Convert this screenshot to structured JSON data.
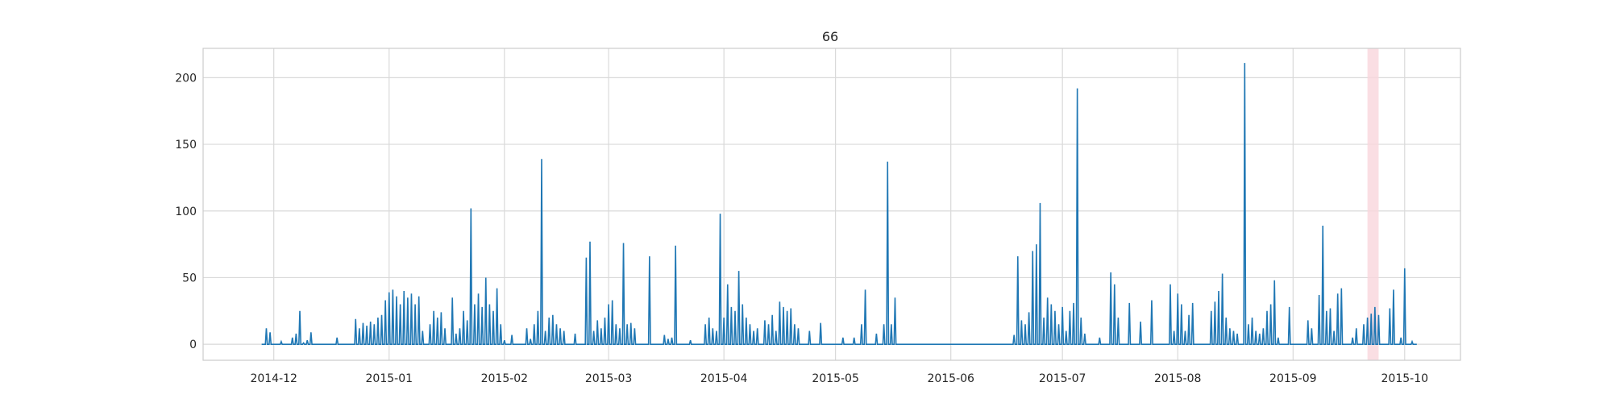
{
  "chart_data": {
    "type": "line",
    "title": "66",
    "xlabel": "",
    "ylabel": "",
    "grid": true,
    "x_axis": {
      "type": "date",
      "range": [
        "2014-11-12",
        "2015-10-16"
      ],
      "ticks": [
        "2014-12-01",
        "2015-01-01",
        "2015-02-01",
        "2015-03-01",
        "2015-04-01",
        "2015-05-01",
        "2015-06-01",
        "2015-07-01",
        "2015-08-01",
        "2015-09-01",
        "2015-10-01"
      ],
      "tick_labels": [
        "2014-12",
        "2015-01",
        "2015-02",
        "2015-03",
        "2015-04",
        "2015-05",
        "2015-06",
        "2015-07",
        "2015-08",
        "2015-09",
        "2015-10"
      ]
    },
    "y_axis": {
      "range": [
        -12,
        222
      ],
      "ticks": [
        0,
        50,
        100,
        150,
        200
      ],
      "tick_labels": [
        "0",
        "50",
        "100",
        "150",
        "200"
      ]
    },
    "highlight_span": {
      "from": "2015-09-21",
      "to": "2015-09-24",
      "color": "#f9d6dc"
    },
    "series": [
      {
        "color": "#1f77b4",
        "points": [
          [
            "2014-11-28",
            0
          ],
          [
            "2014-11-29",
            12
          ],
          [
            "2014-11-30",
            9
          ],
          [
            "2014-12-01",
            0
          ],
          [
            "2014-12-03",
            2
          ],
          [
            "2014-12-06",
            5
          ],
          [
            "2014-12-07",
            8
          ],
          [
            "2014-12-08",
            25
          ],
          [
            "2014-12-09",
            1
          ],
          [
            "2014-12-10",
            3
          ],
          [
            "2014-12-11",
            9
          ],
          [
            "2014-12-12",
            0
          ],
          [
            "2014-12-18",
            5
          ],
          [
            "2014-12-19",
            0
          ],
          [
            "2014-12-23",
            19
          ],
          [
            "2014-12-24",
            12
          ],
          [
            "2014-12-25",
            16
          ],
          [
            "2014-12-26",
            14
          ],
          [
            "2014-12-27",
            17
          ],
          [
            "2014-12-28",
            15
          ],
          [
            "2014-12-29",
            20
          ],
          [
            "2014-12-30",
            22
          ],
          [
            "2014-12-31",
            33
          ],
          [
            "2015-01-01",
            39
          ],
          [
            "2015-01-02",
            41
          ],
          [
            "2015-01-03",
            36
          ],
          [
            "2015-01-04",
            30
          ],
          [
            "2015-01-05",
            40
          ],
          [
            "2015-01-06",
            35
          ],
          [
            "2015-01-07",
            38
          ],
          [
            "2015-01-08",
            30
          ],
          [
            "2015-01-09",
            36
          ],
          [
            "2015-01-10",
            10
          ],
          [
            "2015-01-11",
            0
          ],
          [
            "2015-01-12",
            15
          ],
          [
            "2015-01-13",
            25
          ],
          [
            "2015-01-14",
            20
          ],
          [
            "2015-01-15",
            24
          ],
          [
            "2015-01-16",
            12
          ],
          [
            "2015-01-17",
            0
          ],
          [
            "2015-01-18",
            35
          ],
          [
            "2015-01-19",
            8
          ],
          [
            "2015-01-20",
            12
          ],
          [
            "2015-01-21",
            25
          ],
          [
            "2015-01-22",
            18
          ],
          [
            "2015-01-23",
            102
          ],
          [
            "2015-01-24",
            30
          ],
          [
            "2015-01-25",
            38
          ],
          [
            "2015-01-26",
            28
          ],
          [
            "2015-01-27",
            50
          ],
          [
            "2015-01-28",
            30
          ],
          [
            "2015-01-29",
            25
          ],
          [
            "2015-01-30",
            42
          ],
          [
            "2015-01-31",
            15
          ],
          [
            "2015-02-01",
            3
          ],
          [
            "2015-02-02",
            0
          ],
          [
            "2015-02-03",
            7
          ],
          [
            "2015-02-04",
            0
          ],
          [
            "2015-02-07",
            12
          ],
          [
            "2015-02-08",
            4
          ],
          [
            "2015-02-09",
            15
          ],
          [
            "2015-02-10",
            25
          ],
          [
            "2015-02-11",
            139
          ],
          [
            "2015-02-12",
            10
          ],
          [
            "2015-02-13",
            20
          ],
          [
            "2015-02-14",
            22
          ],
          [
            "2015-02-15",
            15
          ],
          [
            "2015-02-16",
            12
          ],
          [
            "2015-02-17",
            10
          ],
          [
            "2015-02-18",
            0
          ],
          [
            "2015-02-20",
            8
          ],
          [
            "2015-02-21",
            0
          ],
          [
            "2015-02-23",
            65
          ],
          [
            "2015-02-24",
            77
          ],
          [
            "2015-02-25",
            10
          ],
          [
            "2015-02-26",
            18
          ],
          [
            "2015-02-27",
            12
          ],
          [
            "2015-02-28",
            20
          ],
          [
            "2015-03-01",
            30
          ],
          [
            "2015-03-02",
            33
          ],
          [
            "2015-03-03",
            15
          ],
          [
            "2015-03-04",
            12
          ],
          [
            "2015-03-05",
            76
          ],
          [
            "2015-03-06",
            15
          ],
          [
            "2015-03-07",
            16
          ],
          [
            "2015-03-08",
            12
          ],
          [
            "2015-03-09",
            0
          ],
          [
            "2015-03-12",
            66
          ],
          [
            "2015-03-13",
            0
          ],
          [
            "2015-03-16",
            7
          ],
          [
            "2015-03-17",
            4
          ],
          [
            "2015-03-18",
            5
          ],
          [
            "2015-03-19",
            74
          ],
          [
            "2015-03-20",
            0
          ],
          [
            "2015-03-23",
            3
          ],
          [
            "2015-03-24",
            0
          ],
          [
            "2015-03-27",
            15
          ],
          [
            "2015-03-28",
            20
          ],
          [
            "2015-03-29",
            12
          ],
          [
            "2015-03-30",
            10
          ],
          [
            "2015-03-31",
            98
          ],
          [
            "2015-04-01",
            20
          ],
          [
            "2015-04-02",
            45
          ],
          [
            "2015-04-03",
            28
          ],
          [
            "2015-04-04",
            25
          ],
          [
            "2015-04-05",
            55
          ],
          [
            "2015-04-06",
            30
          ],
          [
            "2015-04-07",
            20
          ],
          [
            "2015-04-08",
            15
          ],
          [
            "2015-04-09",
            10
          ],
          [
            "2015-04-10",
            12
          ],
          [
            "2015-04-11",
            0
          ],
          [
            "2015-04-12",
            18
          ],
          [
            "2015-04-13",
            15
          ],
          [
            "2015-04-14",
            22
          ],
          [
            "2015-04-15",
            10
          ],
          [
            "2015-04-16",
            32
          ],
          [
            "2015-04-17",
            28
          ],
          [
            "2015-04-18",
            25
          ],
          [
            "2015-04-19",
            27
          ],
          [
            "2015-04-20",
            15
          ],
          [
            "2015-04-21",
            12
          ],
          [
            "2015-04-22",
            0
          ],
          [
            "2015-04-24",
            10
          ],
          [
            "2015-04-25",
            0
          ],
          [
            "2015-04-27",
            16
          ],
          [
            "2015-04-28",
            0
          ],
          [
            "2015-05-03",
            5
          ],
          [
            "2015-05-04",
            0
          ],
          [
            "2015-05-06",
            5
          ],
          [
            "2015-05-07",
            0
          ],
          [
            "2015-05-08",
            15
          ],
          [
            "2015-05-09",
            41
          ],
          [
            "2015-05-10",
            0
          ],
          [
            "2015-05-12",
            8
          ],
          [
            "2015-05-13",
            0
          ],
          [
            "2015-05-14",
            15
          ],
          [
            "2015-05-15",
            137
          ],
          [
            "2015-05-16",
            15
          ],
          [
            "2015-05-17",
            35
          ],
          [
            "2015-05-18",
            0
          ],
          [
            "2015-06-17",
            0
          ],
          [
            "2015-06-18",
            7
          ],
          [
            "2015-06-19",
            66
          ],
          [
            "2015-06-20",
            18
          ],
          [
            "2015-06-21",
            15
          ],
          [
            "2015-06-22",
            24
          ],
          [
            "2015-06-23",
            70
          ],
          [
            "2015-06-24",
            75
          ],
          [
            "2015-06-25",
            106
          ],
          [
            "2015-06-26",
            20
          ],
          [
            "2015-06-27",
            35
          ],
          [
            "2015-06-28",
            30
          ],
          [
            "2015-06-29",
            25
          ],
          [
            "2015-06-30",
            15
          ],
          [
            "2015-07-01",
            28
          ],
          [
            "2015-07-02",
            10
          ],
          [
            "2015-07-03",
            25
          ],
          [
            "2015-07-04",
            31
          ],
          [
            "2015-07-05",
            192
          ],
          [
            "2015-07-06",
            20
          ],
          [
            "2015-07-07",
            8
          ],
          [
            "2015-07-08",
            0
          ],
          [
            "2015-07-11",
            5
          ],
          [
            "2015-07-12",
            0
          ],
          [
            "2015-07-14",
            54
          ],
          [
            "2015-07-15",
            45
          ],
          [
            "2015-07-16",
            20
          ],
          [
            "2015-07-17",
            0
          ],
          [
            "2015-07-19",
            31
          ],
          [
            "2015-07-20",
            0
          ],
          [
            "2015-07-22",
            17
          ],
          [
            "2015-07-23",
            0
          ],
          [
            "2015-07-25",
            33
          ],
          [
            "2015-07-26",
            0
          ],
          [
            "2015-07-30",
            45
          ],
          [
            "2015-07-31",
            10
          ],
          [
            "2015-08-01",
            38
          ],
          [
            "2015-08-02",
            30
          ],
          [
            "2015-08-03",
            10
          ],
          [
            "2015-08-04",
            22
          ],
          [
            "2015-08-05",
            31
          ],
          [
            "2015-08-06",
            0
          ],
          [
            "2015-08-10",
            25
          ],
          [
            "2015-08-11",
            32
          ],
          [
            "2015-08-12",
            40
          ],
          [
            "2015-08-13",
            53
          ],
          [
            "2015-08-14",
            20
          ],
          [
            "2015-08-15",
            12
          ],
          [
            "2015-08-16",
            10
          ],
          [
            "2015-08-17",
            8
          ],
          [
            "2015-08-18",
            0
          ],
          [
            "2015-08-19",
            211
          ],
          [
            "2015-08-20",
            15
          ],
          [
            "2015-08-21",
            20
          ],
          [
            "2015-08-22",
            10
          ],
          [
            "2015-08-23",
            8
          ],
          [
            "2015-08-24",
            12
          ],
          [
            "2015-08-25",
            25
          ],
          [
            "2015-08-26",
            30
          ],
          [
            "2015-08-27",
            48
          ],
          [
            "2015-08-28",
            5
          ],
          [
            "2015-08-29",
            0
          ],
          [
            "2015-08-31",
            28
          ],
          [
            "2015-09-01",
            0
          ],
          [
            "2015-09-05",
            18
          ],
          [
            "2015-09-06",
            12
          ],
          [
            "2015-09-07",
            0
          ],
          [
            "2015-09-08",
            37
          ],
          [
            "2015-09-09",
            89
          ],
          [
            "2015-09-10",
            25
          ],
          [
            "2015-09-11",
            27
          ],
          [
            "2015-09-12",
            10
          ],
          [
            "2015-09-13",
            38
          ],
          [
            "2015-09-14",
            42
          ],
          [
            "2015-09-15",
            0
          ],
          [
            "2015-09-17",
            5
          ],
          [
            "2015-09-18",
            12
          ],
          [
            "2015-09-19",
            0
          ],
          [
            "2015-09-20",
            15
          ],
          [
            "2015-09-21",
            20
          ],
          [
            "2015-09-22",
            23
          ],
          [
            "2015-09-23",
            28
          ],
          [
            "2015-09-24",
            22
          ],
          [
            "2015-09-25",
            0
          ],
          [
            "2015-09-27",
            27
          ],
          [
            "2015-09-28",
            41
          ],
          [
            "2015-09-29",
            0
          ],
          [
            "2015-09-30",
            5
          ],
          [
            "2015-10-01",
            57
          ],
          [
            "2015-10-02",
            0
          ],
          [
            "2015-10-03",
            2
          ],
          [
            "2015-10-04",
            0
          ]
        ]
      }
    ]
  }
}
